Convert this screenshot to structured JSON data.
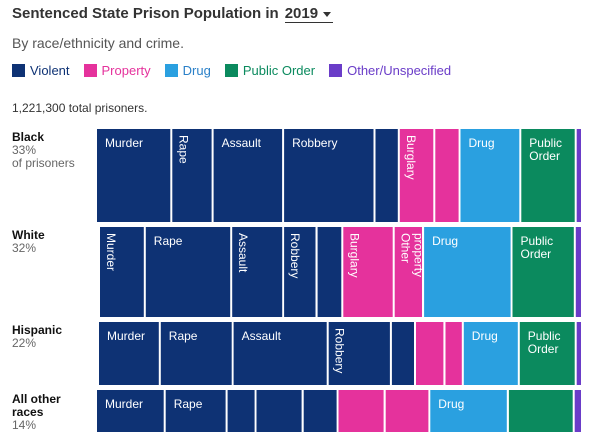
{
  "header": {
    "title_prefix": "Sentenced State Prison Population in",
    "year": "2019",
    "subtitle": "By race/ethnicity and crime."
  },
  "legend": [
    {
      "label": "Violent",
      "color": "#0e3274",
      "text_color": "#0e3274"
    },
    {
      "label": "Property",
      "color": "#e5329c",
      "text_color": "#e5329c"
    },
    {
      "label": "Drug",
      "color": "#2aa0e0",
      "text_color": "#2a80c8"
    },
    {
      "label": "Public Order",
      "color": "#0b8a5e",
      "text_color": "#0b8a5e"
    },
    {
      "label": "Other/Unspecified",
      "color": "#6a3cc8",
      "text_color": "#6a3cc8"
    }
  ],
  "total_text": "1,221,300 total prisoners.",
  "groups": [
    {
      "name": "Black",
      "pct": "33%",
      "extra": "of prisoners"
    },
    {
      "name": "White",
      "pct": "32%",
      "extra": ""
    },
    {
      "name": "Hispanic",
      "pct": "22%",
      "extra": ""
    },
    {
      "name": "All other races",
      "pct": "14%",
      "extra": ""
    }
  ],
  "chart_data": {
    "type": "bar",
    "title": "Sentenced State Prison Population in 2019",
    "subtitle": "By race/ethnicity and crime.",
    "total_prisoners": 1221300,
    "categories": [
      "Black",
      "White",
      "Hispanic",
      "All other races"
    ],
    "group_share_pct": [
      33,
      32,
      22,
      14
    ],
    "segments": [
      [
        {
          "label": "Murder",
          "crime": "Violent",
          "pct": 15.5
        },
        {
          "label": "Rape",
          "crime": "Violent",
          "pct": 8.5
        },
        {
          "label": "Assault",
          "crime": "Violent",
          "pct": 14.5
        },
        {
          "label": "Robbery",
          "crime": "Violent",
          "pct": 18.8
        },
        {
          "label": "",
          "crime": "Violent",
          "pct": 5.0
        },
        {
          "label": "Burglary",
          "crime": "Property",
          "pct": 7.3
        },
        {
          "label": "",
          "crime": "Property",
          "pct": 5.2
        },
        {
          "label": "Drug",
          "crime": "Drug",
          "pct": 12.5
        },
        {
          "label": "Public Order",
          "crime": "Public Order",
          "pct": 11.4
        },
        {
          "label": "",
          "crime": "Other/Unspecified",
          "pct": 1.3
        }
      ],
      [
        {
          "label": "Murder",
          "crime": "Violent",
          "pct": 8.9
        },
        {
          "label": "Rape",
          "crime": "Violent",
          "pct": 16.8
        },
        {
          "label": "Assault",
          "crime": "Violent",
          "pct": 10.1
        },
        {
          "label": "Robbery",
          "crime": "Violent",
          "pct": 6.5
        },
        {
          "label": "",
          "crime": "Violent",
          "pct": 5.0
        },
        {
          "label": "Burglary",
          "crime": "Property",
          "pct": 10.0
        },
        {
          "label": "Other property",
          "crime": "Property",
          "pct": 5.7
        },
        {
          "label": "Drug",
          "crime": "Drug",
          "pct": 17.2
        },
        {
          "label": "Public Order",
          "crime": "Public Order",
          "pct": 12.3
        },
        {
          "label": "",
          "crime": "Other/Unspecified",
          "pct": 1.4
        }
      ],
      [
        {
          "label": "Murder",
          "crime": "Violent",
          "pct": 12.8
        },
        {
          "label": "Rape",
          "crime": "Violent",
          "pct": 15.1
        },
        {
          "label": "Assault",
          "crime": "Violent",
          "pct": 19.7
        },
        {
          "label": "Robbery",
          "crime": "Violent",
          "pct": 13.1
        },
        {
          "label": "",
          "crime": "Violent",
          "pct": 5.0
        },
        {
          "label": "",
          "crime": "Property",
          "pct": 6.1
        },
        {
          "label": "",
          "crime": "Property",
          "pct": 3.8
        },
        {
          "label": "Drug",
          "crime": "Drug",
          "pct": 11.6
        },
        {
          "label": "Public Order",
          "crime": "Public Order",
          "pct": 11.8
        },
        {
          "label": "",
          "crime": "Other/Unspecified",
          "pct": 1.3
        }
      ],
      [
        {
          "label": "Murder",
          "crime": "Violent",
          "pct": 14.0
        },
        {
          "label": "Rape",
          "crime": "Violent",
          "pct": 12.6
        },
        {
          "label": "",
          "crime": "Violent",
          "pct": 5.9
        },
        {
          "label": "",
          "crime": "Violent",
          "pct": 9.6
        },
        {
          "label": "",
          "crime": "Violent",
          "pct": 7.1
        },
        {
          "label": "",
          "crime": "Property",
          "pct": 9.6
        },
        {
          "label": "",
          "crime": "Property",
          "pct": 9.1
        },
        {
          "label": "Drug",
          "crime": "Drug",
          "pct": 16.0
        },
        {
          "label": "",
          "crime": "Public Order",
          "pct": 13.4
        },
        {
          "label": "",
          "crime": "Other/Unspecified",
          "pct": 1.7
        }
      ]
    ]
  }
}
